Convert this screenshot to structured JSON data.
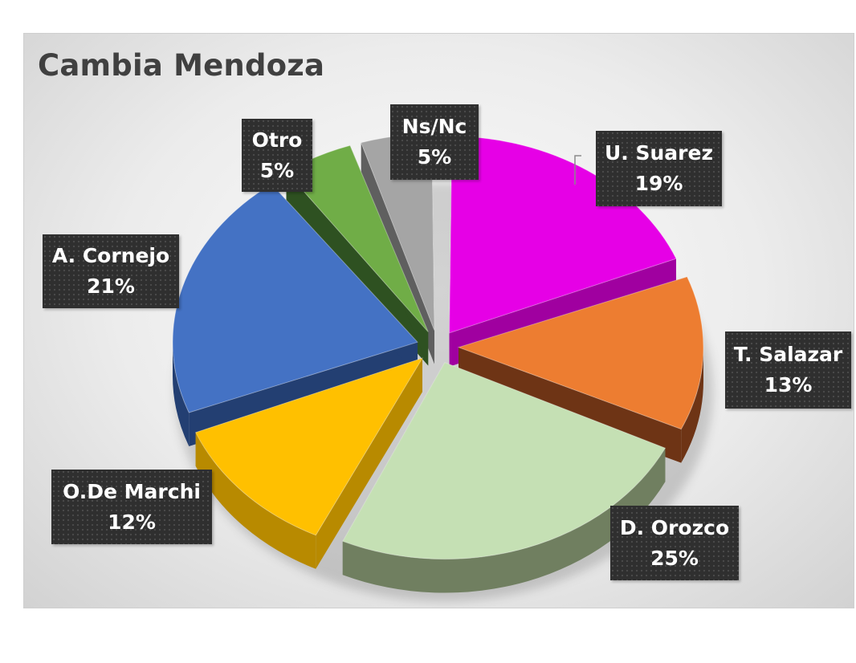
{
  "chart_data": {
    "type": "pie",
    "title": "Cambia Mendoza",
    "slices": [
      {
        "name": "U. Suarez",
        "value": 19,
        "label": "19%",
        "color": "#e600e6",
        "side": "#a000a0"
      },
      {
        "name": "T. Salazar",
        "value": 13,
        "label": "13%",
        "color": "#ed7d31",
        "side": "#6e3415"
      },
      {
        "name": "D. Orozco",
        "value": 25,
        "label": "25%",
        "color": "#c5e0b4",
        "side": "#707f60"
      },
      {
        "name": "O.De Marchi",
        "value": 12,
        "label": "12%",
        "color": "#ffc000",
        "side": "#b88a00"
      },
      {
        "name": "A. Cornejo",
        "value": 21,
        "label": "21%",
        "color": "#4472c4",
        "side": "#233f72"
      },
      {
        "name": "Otro",
        "value": 5,
        "label": "5%",
        "color": "#70ad47",
        "side": "#2e5121"
      },
      {
        "name": "Ns/Nc",
        "value": 5,
        "label": "5%",
        "color": "#a5a5a5",
        "side": "#5f5f5f"
      }
    ],
    "legend": "none",
    "style": "3d-exploded"
  }
}
